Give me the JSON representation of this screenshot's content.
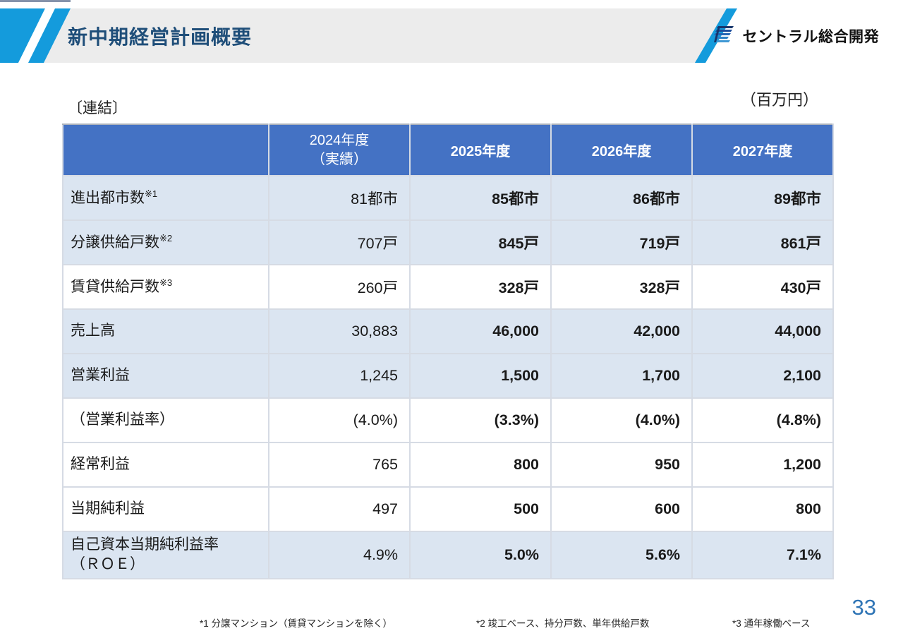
{
  "header": {
    "title": "新中期経営計画概要",
    "logo_text": "セントラル総合開発"
  },
  "labels": {
    "scope": "〔連結〕",
    "unit": "（百万円）"
  },
  "table": {
    "columns": {
      "actual": "2024年度\n（実績）",
      "y2025": "2025年度",
      "y2026": "2026年度",
      "y2027": "2027年度"
    },
    "rows": [
      {
        "label": "進出都市数",
        "sup": "※1",
        "values": [
          "81都市",
          "85都市",
          "86都市",
          "89都市"
        ],
        "shade": true
      },
      {
        "label": "分譲供給戸数",
        "sup": "※2",
        "values": [
          "707戸",
          "845戸",
          "719戸",
          "861戸"
        ],
        "shade": true
      },
      {
        "label": "賃貸供給戸数",
        "sup": "※3",
        "values": [
          "260戸",
          "328戸",
          "328戸",
          "430戸"
        ],
        "shade": false
      },
      {
        "label": "売上高",
        "sup": "",
        "values": [
          "30,883",
          "46,000",
          "42,000",
          "44,000"
        ],
        "shade": true
      },
      {
        "label": "営業利益",
        "sup": "",
        "values": [
          "1,245",
          "1,500",
          "1,700",
          "2,100"
        ],
        "shade": true
      },
      {
        "label": "（営業利益率）",
        "sup": "",
        "values": [
          "(4.0%)",
          "(3.3%)",
          "(4.0%)",
          "(4.8%)"
        ],
        "shade": false
      },
      {
        "label": "経常利益",
        "sup": "",
        "values": [
          "765",
          "800",
          "950",
          "1,200"
        ],
        "shade": false
      },
      {
        "label": "当期純利益",
        "sup": "",
        "values": [
          "497",
          "500",
          "600",
          "800"
        ],
        "shade": false
      },
      {
        "label": "自己資本当期純利益率\n（ＲＯＥ）",
        "sup": "",
        "values": [
          "4.9%",
          "5.0%",
          "5.6%",
          "7.1%"
        ],
        "shade": true
      }
    ]
  },
  "footnotes": [
    "*1 分譲マンション（賃貸マンションを除く）",
    "*2 竣工ベース、持分戸数、単年供給戸数",
    "*3 通年稼働ベース"
  ],
  "page_number": "33",
  "colors": {
    "header_fill": "#4472C4",
    "row_band_fill": "#DBE5F1",
    "stripe_blue": "#149BDC",
    "title_navy": "#1F4E79",
    "page_number_blue": "#2E74B5",
    "band_gray": "#ECECEC"
  }
}
